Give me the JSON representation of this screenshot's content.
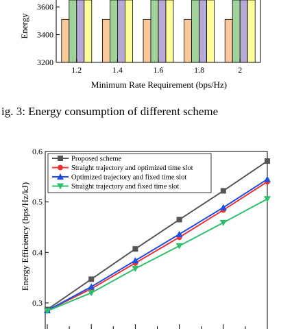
{
  "chart_data": [
    {
      "type": "bar",
      "title": "",
      "xlabel": "Minimum Rate Requirement (bps/Hz)",
      "ylabel": "Energy",
      "categories": [
        "1.2",
        "1.4",
        "1.6",
        "1.8",
        "2"
      ],
      "y_ticks": [
        "3200",
        "3400",
        "3600"
      ],
      "ylim": [
        3200,
        3650
      ],
      "series": [
        {
          "color": "#f9c89b",
          "values": [
            3510,
            3510,
            3510,
            3510,
            3510
          ]
        },
        {
          "color": "#9fd39a",
          "values": [
            3700,
            3700,
            3700,
            3700,
            3700
          ]
        },
        {
          "color": "#b7a9d6",
          "values": [
            3700,
            3700,
            3700,
            3700,
            3700
          ]
        },
        {
          "color": "#ffff99",
          "values": [
            3700,
            3700,
            3700,
            3700,
            3700
          ]
        }
      ],
      "grid": false
    },
    {
      "type": "line",
      "title": "",
      "ylabel": "Energy Efficiency (bps/Hz/kJ)",
      "y_ticks": [
        "0.3",
        "0.4",
        "0.5",
        "0.6"
      ],
      "ylim": [
        0.285,
        0.6
      ],
      "x_count": 6,
      "legend_position": "top-left",
      "series": [
        {
          "name": "Proposed scheme",
          "color": "#555555",
          "marker": "square",
          "values": [
            0.287,
            0.347,
            0.407,
            0.465,
            0.522,
            0.581
          ]
        },
        {
          "name": "Straight trajectory and optimized time slot",
          "color": "#e8323c",
          "marker": "circle",
          "values": [
            0.285,
            0.328,
            0.379,
            0.43,
            0.484,
            0.54
          ]
        },
        {
          "name": "Optimized trajectory and fixed time slot",
          "color": "#1f4fe0",
          "marker": "triangle-up",
          "values": [
            0.285,
            0.332,
            0.384,
            0.436,
            0.489,
            0.545
          ]
        },
        {
          "name": "Straight trajectory and fixed time slot",
          "color": "#2fbf6a",
          "marker": "triangle-down",
          "values": [
            0.284,
            0.32,
            0.368,
            0.413,
            0.459,
            0.506
          ]
        }
      ]
    }
  ],
  "caption": {
    "text": "ig. 3: Energy consumption of different scheme"
  }
}
